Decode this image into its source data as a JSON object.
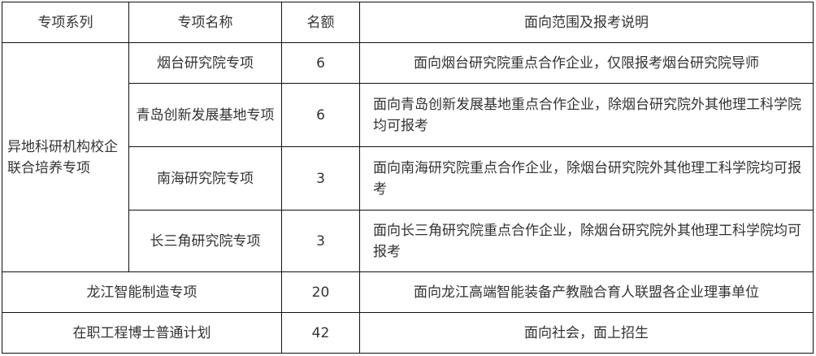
{
  "headers": [
    "专项系列",
    "专项名称",
    "名额",
    "面向范围及报考说明"
  ],
  "group": {
    "series": "异地科研机构校企联合培养专项",
    "rows": [
      {
        "name": "烟台研究院专项",
        "quota": "6",
        "desc": "面向烟台研究院重点合作企业，仅限报考烟台研究院导师"
      },
      {
        "name": "青岛创新发展基地专项",
        "quota": "6",
        "desc": "面向青岛创新发展基地重点合作企业，除烟台研究院外其他理工科学院均可报考"
      },
      {
        "name": "南海研究院专项",
        "quota": "3",
        "desc": "面向南海研究院重点合作企业，除烟台研究院外其他理工科学院均可报考"
      },
      {
        "name": "长三角研究院专项",
        "quota": "3",
        "desc": "面向长三角研究院重点合作企业，除烟台研究院外其他理工科学院均可报考"
      }
    ]
  },
  "rows": [
    {
      "name": "龙江智能制造专项",
      "quota": "20",
      "desc": "面向龙江高端智能装备产教融合育人联盟各企业理事单位"
    },
    {
      "name": "在职工程博士普通计划",
      "quota": "42",
      "desc": "面向社会，面上招生"
    }
  ]
}
